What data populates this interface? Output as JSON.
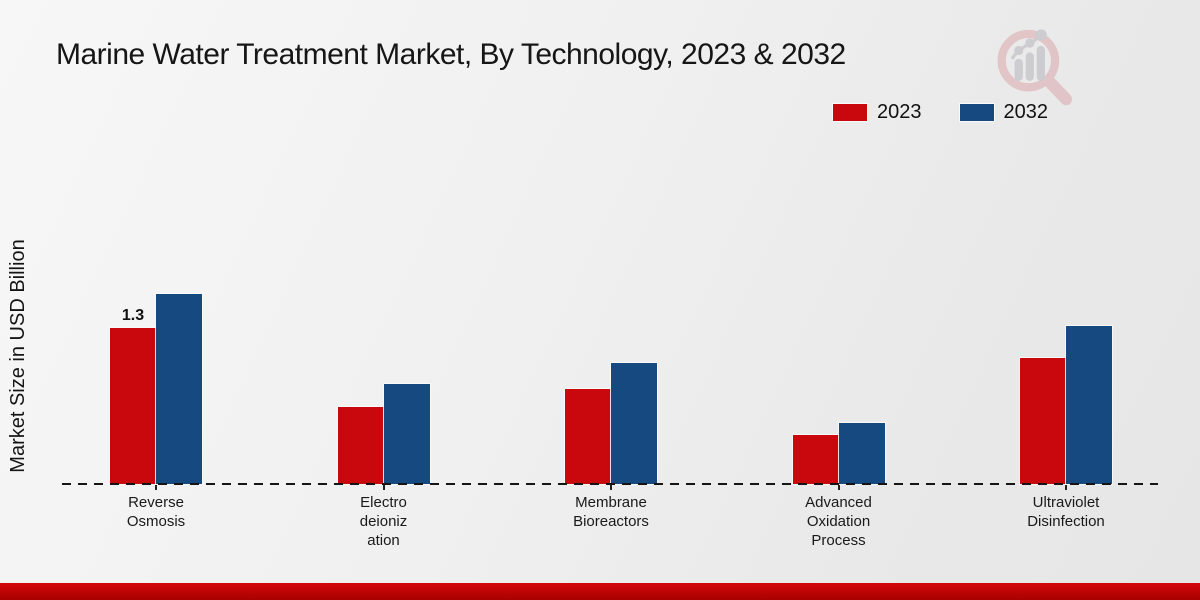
{
  "header": {
    "title": "Marine Water Treatment Market, By Technology, 2023 & 2032"
  },
  "chart_data": {
    "type": "bar",
    "title": "Marine Water Treatment Market, By Technology, 2023 & 2032",
    "xlabel": "",
    "ylabel": "Market Size in USD Billion",
    "ylim": [
      0,
      1.9
    ],
    "grid": false,
    "legend_position": "top-right",
    "baseline_style": "dashed",
    "categories": [
      "Reverse Osmosis",
      "Electro deionization",
      "Membrane Bioreactors",
      "Advanced Oxidation Process",
      "Ultraviolet Disinfection"
    ],
    "categories_display": [
      "Reverse\nOsmosis",
      "Electro\ndeioniz\nation",
      "Membrane\nBioreactors",
      "Advanced\nOxidation\nProcess",
      "Ultraviolet\nDisinfection"
    ],
    "series": [
      {
        "name": "2023",
        "color": "#c9080d",
        "values": [
          1.3,
          0.64,
          0.79,
          0.41,
          1.05
        ]
      },
      {
        "name": "2032",
        "color": "#15497f",
        "values": [
          1.58,
          0.83,
          1.01,
          0.51,
          1.32
        ]
      }
    ],
    "annotations": [
      {
        "series": 0,
        "category": 0,
        "text": "1.3"
      }
    ]
  },
  "colors": {
    "accent_red": "#c9080d",
    "accent_blue": "#15497f",
    "footer_red": "#b40404",
    "background": "#efefef"
  },
  "footer": {},
  "logo": {
    "name": "market-research-magnifier-logo"
  }
}
